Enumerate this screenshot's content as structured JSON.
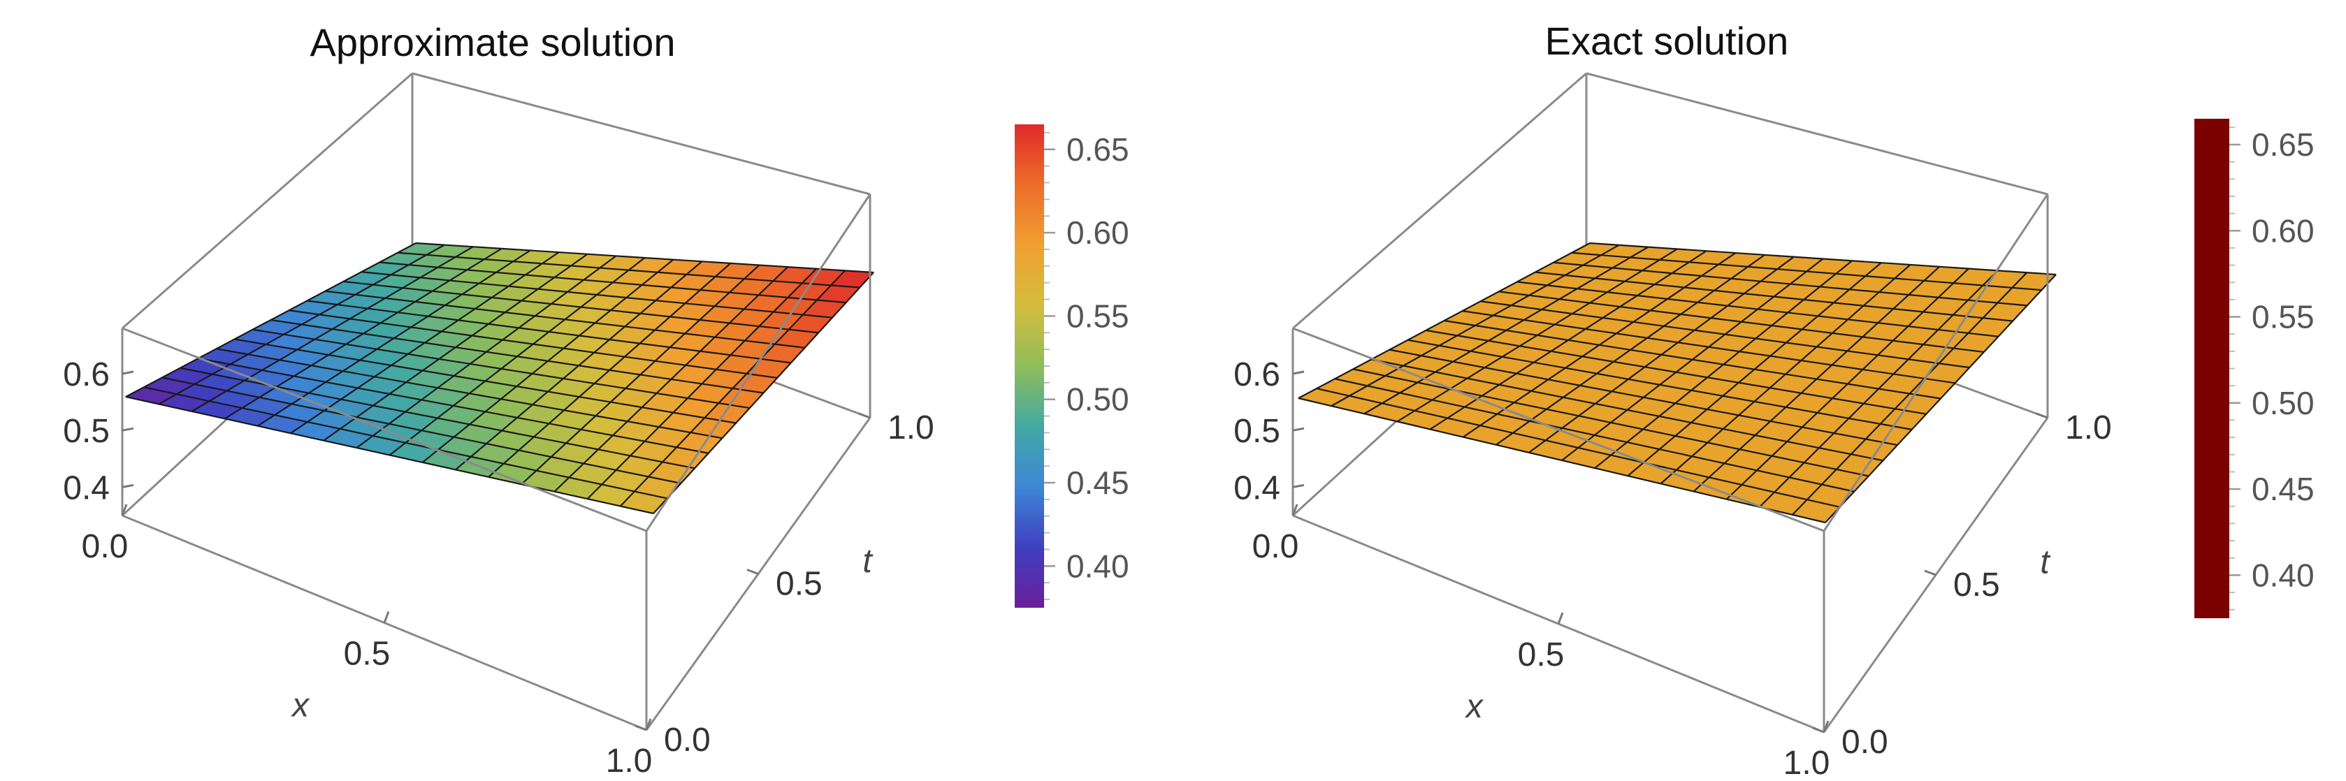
{
  "chart_data": [
    {
      "type": "surface3d",
      "title": "Approximate solution",
      "xlabel": "x",
      "ylabel": "t",
      "zlabel": "",
      "x_range": [
        0,
        1
      ],
      "t_range": [
        0,
        1
      ],
      "z_range": [
        0.35,
        0.68
      ],
      "x_ticks": [
        "0.0",
        "0.5",
        "1.0"
      ],
      "t_ticks": [
        "0.0",
        "0.5",
        "1.0"
      ],
      "z_ticks": [
        "0.4",
        "0.5",
        "0.6"
      ],
      "surface_corners": {
        "x0_t0": 0.5,
        "x0_t1": 0.38,
        "x1_t0": 0.67,
        "x1_t1": 0.57
      },
      "grid_divisions": 16,
      "mesh": true,
      "colormap": "rainbow",
      "colorbar": {
        "min": 0.375,
        "max": 0.665,
        "ticks": [
          "0.40",
          "0.45",
          "0.50",
          "0.55",
          "0.60",
          "0.65"
        ],
        "colors": [
          "#6a1f9a",
          "#3f3fc0",
          "#3e86d6",
          "#43a9a3",
          "#8fbd5a",
          "#d4bd3c",
          "#f0a030",
          "#ed6c2a",
          "#e02b2b"
        ]
      }
    },
    {
      "type": "surface3d",
      "title": "Exact solution",
      "xlabel": "x",
      "ylabel": "t",
      "zlabel": "",
      "x_range": [
        0,
        1
      ],
      "t_range": [
        0,
        1
      ],
      "z_range": [
        0.35,
        0.68
      ],
      "x_ticks": [
        "0.0",
        "0.5",
        "1.0"
      ],
      "t_ticks": [
        "0.0",
        "0.5",
        "1.0"
      ],
      "z_ticks": [
        "0.4",
        "0.5",
        "0.6"
      ],
      "surface_corners": {
        "x0_t0": 0.5,
        "x0_t1": 0.5,
        "x1_t0": 0.5,
        "x1_t1": 0.5
      },
      "grid_divisions": 16,
      "mesh": true,
      "surface_color": "#e8a32c",
      "colorbar": {
        "min": 0.375,
        "max": 0.665,
        "ticks": [
          "0.40",
          "0.45",
          "0.50",
          "0.55",
          "0.60",
          "0.65"
        ],
        "colors": [
          "#7b0000"
        ]
      }
    }
  ]
}
